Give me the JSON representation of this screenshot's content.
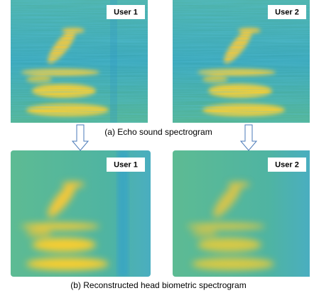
{
  "panels": [
    {
      "label": "User 1"
    },
    {
      "label": "User 2"
    },
    {
      "label": "User 1"
    },
    {
      "label": "User 2"
    }
  ],
  "captions": [
    "(a) Echo sound spectrogram",
    "(b) Reconstructed head biometric spectrogram"
  ]
}
